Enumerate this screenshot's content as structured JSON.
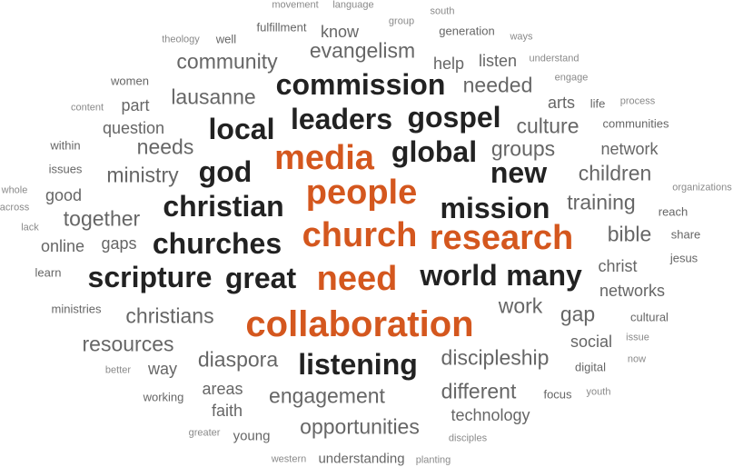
{
  "colors": {
    "accent": "#d4571e",
    "dark": "#222222",
    "mid": "#666666",
    "light": "#8a8a8a"
  },
  "words": [
    {
      "text": "collaboration",
      "weight": 10,
      "tone": "accent"
    },
    {
      "text": "people",
      "weight": 9,
      "tone": "accent"
    },
    {
      "text": "research",
      "weight": 9,
      "tone": "accent"
    },
    {
      "text": "church",
      "weight": 9,
      "tone": "accent"
    },
    {
      "text": "media",
      "weight": 9,
      "tone": "accent"
    },
    {
      "text": "need",
      "weight": 9,
      "tone": "accent"
    },
    {
      "text": "commission",
      "weight": 7,
      "tone": "dark"
    },
    {
      "text": "leaders",
      "weight": 7,
      "tone": "dark"
    },
    {
      "text": "gospel",
      "weight": 7,
      "tone": "dark"
    },
    {
      "text": "local",
      "weight": 7,
      "tone": "dark"
    },
    {
      "text": "global",
      "weight": 7,
      "tone": "dark"
    },
    {
      "text": "god",
      "weight": 7,
      "tone": "dark"
    },
    {
      "text": "new",
      "weight": 7,
      "tone": "dark"
    },
    {
      "text": "christian",
      "weight": 7,
      "tone": "dark"
    },
    {
      "text": "mission",
      "weight": 7,
      "tone": "dark"
    },
    {
      "text": "churches",
      "weight": 7,
      "tone": "dark"
    },
    {
      "text": "scripture",
      "weight": 7,
      "tone": "dark"
    },
    {
      "text": "great",
      "weight": 7,
      "tone": "dark"
    },
    {
      "text": "world",
      "weight": 7,
      "tone": "dark"
    },
    {
      "text": "many",
      "weight": 7,
      "tone": "dark"
    },
    {
      "text": "listening",
      "weight": 7,
      "tone": "dark"
    },
    {
      "text": "community",
      "weight": 5,
      "tone": "mid"
    },
    {
      "text": "evangelism",
      "weight": 5,
      "tone": "mid"
    },
    {
      "text": "lausanne",
      "weight": 5,
      "tone": "mid"
    },
    {
      "text": "needed",
      "weight": 5,
      "tone": "mid"
    },
    {
      "text": "culture",
      "weight": 5,
      "tone": "mid"
    },
    {
      "text": "groups",
      "weight": 5,
      "tone": "mid"
    },
    {
      "text": "children",
      "weight": 5,
      "tone": "mid"
    },
    {
      "text": "training",
      "weight": 5,
      "tone": "mid"
    },
    {
      "text": "needs",
      "weight": 5,
      "tone": "mid"
    },
    {
      "text": "ministry",
      "weight": 5,
      "tone": "mid"
    },
    {
      "text": "together",
      "weight": 5,
      "tone": "mid"
    },
    {
      "text": "bible",
      "weight": 5,
      "tone": "mid"
    },
    {
      "text": "work",
      "weight": 5,
      "tone": "mid"
    },
    {
      "text": "gap",
      "weight": 5,
      "tone": "mid"
    },
    {
      "text": "christians",
      "weight": 5,
      "tone": "mid"
    },
    {
      "text": "resources",
      "weight": 5,
      "tone": "mid"
    },
    {
      "text": "diaspora",
      "weight": 5,
      "tone": "mid"
    },
    {
      "text": "discipleship",
      "weight": 5,
      "tone": "mid"
    },
    {
      "text": "different",
      "weight": 5,
      "tone": "mid"
    },
    {
      "text": "engagement",
      "weight": 5,
      "tone": "mid"
    },
    {
      "text": "opportunities",
      "weight": 5,
      "tone": "mid"
    },
    {
      "text": "question",
      "weight": 4,
      "tone": "mid"
    },
    {
      "text": "part",
      "weight": 4,
      "tone": "mid"
    },
    {
      "text": "arts",
      "weight": 4,
      "tone": "mid"
    },
    {
      "text": "know",
      "weight": 4,
      "tone": "mid"
    },
    {
      "text": "listen",
      "weight": 4,
      "tone": "mid"
    },
    {
      "text": "help",
      "weight": 4,
      "tone": "mid"
    },
    {
      "text": "network",
      "weight": 4,
      "tone": "mid"
    },
    {
      "text": "good",
      "weight": 4,
      "tone": "mid"
    },
    {
      "text": "online",
      "weight": 4,
      "tone": "mid"
    },
    {
      "text": "gaps",
      "weight": 4,
      "tone": "mid"
    },
    {
      "text": "christ",
      "weight": 4,
      "tone": "mid"
    },
    {
      "text": "networks",
      "weight": 4,
      "tone": "mid"
    },
    {
      "text": "social",
      "weight": 4,
      "tone": "mid"
    },
    {
      "text": "way",
      "weight": 4,
      "tone": "mid"
    },
    {
      "text": "areas",
      "weight": 4,
      "tone": "mid"
    },
    {
      "text": "faith",
      "weight": 4,
      "tone": "mid"
    },
    {
      "text": "technology",
      "weight": 4,
      "tone": "mid"
    },
    {
      "text": "young",
      "weight": 3,
      "tone": "mid"
    },
    {
      "text": "understanding",
      "weight": 3,
      "tone": "mid"
    },
    {
      "text": "fulfillment",
      "weight": 2,
      "tone": "mid"
    },
    {
      "text": "generation",
      "weight": 2,
      "tone": "mid"
    },
    {
      "text": "well",
      "weight": 2,
      "tone": "mid"
    },
    {
      "text": "women",
      "weight": 2,
      "tone": "mid"
    },
    {
      "text": "life",
      "weight": 2,
      "tone": "mid"
    },
    {
      "text": "communities",
      "weight": 2,
      "tone": "mid"
    },
    {
      "text": "within",
      "weight": 2,
      "tone": "mid"
    },
    {
      "text": "issues",
      "weight": 2,
      "tone": "mid"
    },
    {
      "text": "reach",
      "weight": 2,
      "tone": "mid"
    },
    {
      "text": "share",
      "weight": 2,
      "tone": "mid"
    },
    {
      "text": "jesus",
      "weight": 2,
      "tone": "mid"
    },
    {
      "text": "learn",
      "weight": 2,
      "tone": "mid"
    },
    {
      "text": "ministries",
      "weight": 2,
      "tone": "mid"
    },
    {
      "text": "cultural",
      "weight": 2,
      "tone": "mid"
    },
    {
      "text": "digital",
      "weight": 2,
      "tone": "mid"
    },
    {
      "text": "working",
      "weight": 2,
      "tone": "mid"
    },
    {
      "text": "focus",
      "weight": 2,
      "tone": "mid"
    },
    {
      "text": "youth",
      "weight": 1,
      "tone": "light"
    },
    {
      "text": "group",
      "weight": 1,
      "tone": "light"
    },
    {
      "text": "movement",
      "weight": 1,
      "tone": "light"
    },
    {
      "text": "language",
      "weight": 1,
      "tone": "light"
    },
    {
      "text": "south",
      "weight": 1,
      "tone": "light"
    },
    {
      "text": "theology",
      "weight": 1,
      "tone": "light"
    },
    {
      "text": "ways",
      "weight": 1,
      "tone": "light"
    },
    {
      "text": "understand",
      "weight": 1,
      "tone": "light"
    },
    {
      "text": "engage",
      "weight": 1,
      "tone": "light"
    },
    {
      "text": "content",
      "weight": 1,
      "tone": "light"
    },
    {
      "text": "process",
      "weight": 1,
      "tone": "light"
    },
    {
      "text": "whole",
      "weight": 1,
      "tone": "light"
    },
    {
      "text": "organizations",
      "weight": 1,
      "tone": "light"
    },
    {
      "text": "across",
      "weight": 1,
      "tone": "light"
    },
    {
      "text": "lack",
      "weight": 1,
      "tone": "light"
    },
    {
      "text": "issue",
      "weight": 1,
      "tone": "light"
    },
    {
      "text": "now",
      "weight": 1,
      "tone": "light"
    },
    {
      "text": "better",
      "weight": 1,
      "tone": "light"
    },
    {
      "text": "greater",
      "weight": 1,
      "tone": "light"
    },
    {
      "text": "western",
      "weight": 1,
      "tone": "light"
    },
    {
      "text": "planting",
      "weight": 1,
      "tone": "light"
    },
    {
      "text": "disciples",
      "weight": 1,
      "tone": "light"
    }
  ]
}
